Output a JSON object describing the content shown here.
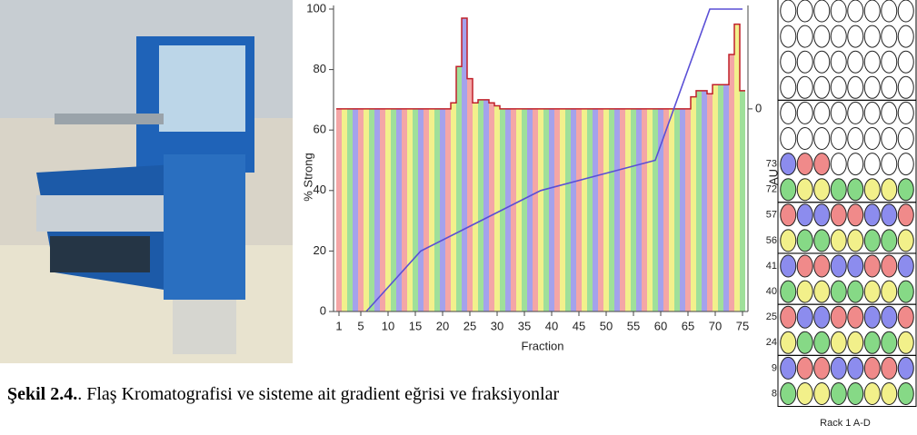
{
  "caption": {
    "label": "Şekil 2.4.",
    "text": ". Flaş Kromatografisi ve sisteme ait gradient eğrisi ve fraksiyonlar"
  },
  "chart_data": {
    "type": "combo",
    "x_label": "Fraction",
    "y_label": "% Strong",
    "y2_label": "AU",
    "x": [
      1,
      2,
      3,
      4,
      5,
      6,
      7,
      8,
      9,
      10,
      11,
      12,
      13,
      14,
      15,
      16,
      17,
      18,
      19,
      20,
      21,
      22,
      23,
      24,
      25,
      26,
      27,
      28,
      29,
      30,
      31,
      32,
      33,
      34,
      35,
      36,
      37,
      38,
      39,
      40,
      41,
      42,
      43,
      44,
      45,
      46,
      47,
      48,
      49,
      50,
      51,
      52,
      53,
      54,
      55,
      56,
      57,
      58,
      59,
      60,
      61,
      62,
      63,
      64,
      65,
      66,
      67,
      68,
      69,
      70,
      71,
      72,
      73,
      74,
      75
    ],
    "xlim": [
      0,
      76
    ],
    "xticks": [
      1,
      5,
      10,
      15,
      20,
      25,
      30,
      35,
      40,
      45,
      50,
      55,
      60,
      65,
      70,
      75
    ],
    "ylim": [
      0,
      100
    ],
    "yticks": [
      0,
      20,
      40,
      60,
      80,
      100
    ],
    "y2lim": [
      -67,
      33
    ],
    "y2ticks": [
      0
    ],
    "series": [
      {
        "axis": "y2",
        "colors": [
          "#f4a6a6",
          "#f2f08c",
          "#9fe09a",
          "#a4a2ec"
        ],
        "outline": "#c0202a",
        "values": [
          0,
          0,
          0,
          0,
          0,
          0,
          0,
          0,
          0,
          0,
          0,
          0,
          0,
          0,
          0,
          0,
          0,
          0,
          0,
          0,
          0,
          2,
          14,
          30,
          10,
          2,
          3,
          3,
          2,
          1,
          0,
          0,
          0,
          0,
          0,
          0,
          0,
          0,
          0,
          0,
          0,
          0,
          0,
          0,
          0,
          0,
          0,
          0,
          0,
          0,
          0,
          0,
          0,
          0,
          0,
          0,
          0,
          0,
          0,
          0,
          0,
          0,
          0,
          0,
          0,
          4,
          6,
          6,
          5,
          8,
          8,
          8,
          18,
          28,
          6
        ]
      },
      {
        "color": "#5a4fd6",
        "x": [
          6,
          16,
          38,
          59,
          69,
          75
        ],
        "values": [
          0,
          20,
          40,
          50,
          100,
          100
        ]
      }
    ]
  },
  "rack": {
    "title": "Rack 1 A-D",
    "rows": [
      null,
      null,
      null,
      null,
      null,
      null,
      "73",
      "72",
      "57",
      "56",
      "41",
      "40",
      "25",
      "24",
      "9",
      "8"
    ]
  }
}
